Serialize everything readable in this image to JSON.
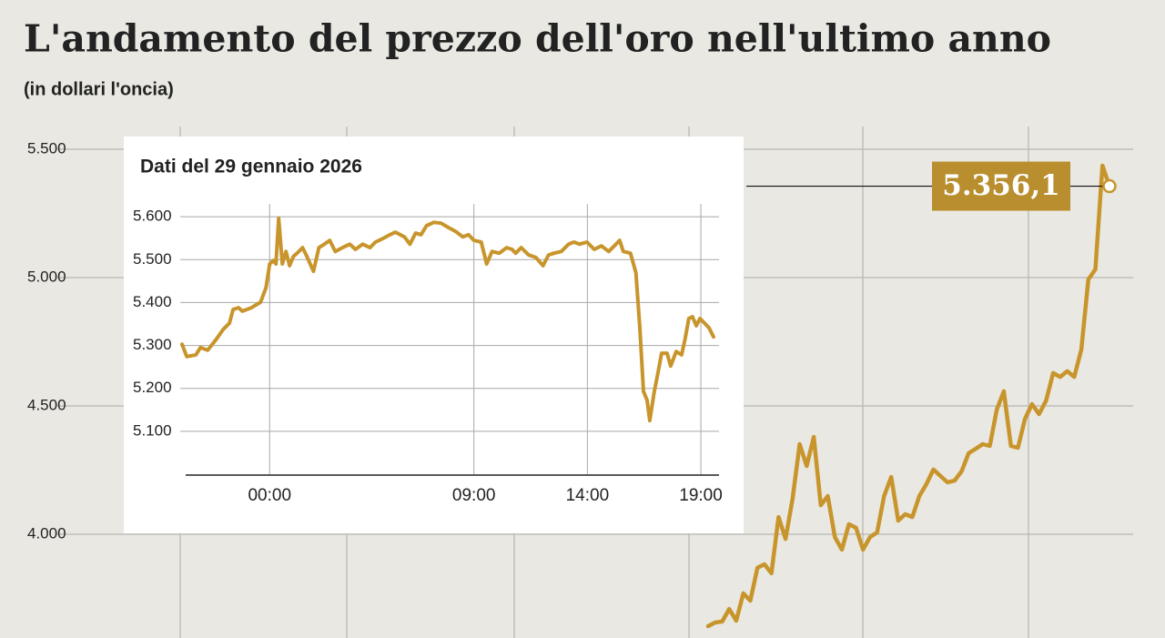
{
  "chart_data": [
    {
      "type": "line",
      "title": "L'andamento del prezzo dell'oro nell'ultimo anno",
      "subtitle": "(in dollari l'oncia)",
      "ylim": [
        3600,
        5590
      ],
      "yticks": [
        {
          "value": 4000,
          "label": "4.000"
        },
        {
          "value": 4500,
          "label": "4.500"
        },
        {
          "value": 5000,
          "label": "5.000"
        },
        {
          "value": 5500,
          "label": "5.500"
        }
      ],
      "grid": true,
      "series": [
        {
          "color": "#c8952c",
          "values": [
            3642,
            3656,
            3660,
            3709,
            3663,
            3770,
            3741,
            3869,
            3883,
            3848,
            4067,
            3982,
            4138,
            4351,
            4266,
            4379,
            4113,
            4149,
            3989,
            3940,
            4039,
            4025,
            3940,
            3989,
            4007,
            4149,
            4223,
            4053,
            4078,
            4067,
            4149,
            4195,
            4252,
            4227,
            4202,
            4209,
            4245,
            4316,
            4333,
            4351,
            4344,
            4486,
            4557,
            4344,
            4337,
            4450,
            4507,
            4468,
            4521,
            4628,
            4613,
            4635,
            4613,
            4720,
            4993,
            5032,
            5436,
            5356.1
          ]
        }
      ],
      "annotation": {
        "text": "5.356,1"
      }
    },
    {
      "type": "line",
      "title": "Dati del 29 gennaio 2026",
      "xlim": [
        -3.7,
        19.8
      ],
      "ylim": [
        5000,
        5630
      ],
      "xticks": [
        {
          "value": 0,
          "label": "00:00"
        },
        {
          "value": 9,
          "label": "09:00"
        },
        {
          "value": 14,
          "label": "14:00"
        },
        {
          "value": 19,
          "label": "19:00"
        }
      ],
      "yticks": [
        {
          "value": 5100,
          "label": "5.100"
        },
        {
          "value": 5200,
          "label": "5.200"
        },
        {
          "value": 5300,
          "label": "5.300"
        },
        {
          "value": 5400,
          "label": "5.400"
        },
        {
          "value": 5500,
          "label": "5.500"
        },
        {
          "value": 5600,
          "label": "5.600"
        }
      ],
      "grid": true,
      "x": [
        -3.86,
        -3.65,
        -3.25,
        -3.05,
        -2.73,
        -2.33,
        -2.05,
        -1.77,
        -1.61,
        -1.37,
        -1.2,
        -0.8,
        -0.4,
        -0.16,
        0,
        0.16,
        0.28,
        0.4,
        0.56,
        0.72,
        0.88,
        1.04,
        1.29,
        1.45,
        1.61,
        1.93,
        2.17,
        2.41,
        2.65,
        2.89,
        3.21,
        3.53,
        3.78,
        4.1,
        4.42,
        4.66,
        4.98,
        5.3,
        5.54,
        5.94,
        6.18,
        6.43,
        6.67,
        6.91,
        7.23,
        7.55,
        7.87,
        8.19,
        8.51,
        8.76,
        9.0,
        9.32,
        9.56,
        9.8,
        10.12,
        10.44,
        10.68,
        10.84,
        11.08,
        11.41,
        11.73,
        12.05,
        12.29,
        12.53,
        12.85,
        13.17,
        13.41,
        13.65,
        13.98,
        14.3,
        14.62,
        14.94,
        15.26,
        15.42,
        15.58,
        15.9,
        16.14,
        16.31,
        16.47,
        16.63,
        16.75,
        16.95,
        17.11,
        17.27,
        17.51,
        17.67,
        17.91,
        18.15,
        18.31,
        18.47,
        18.63,
        18.8,
        18.96,
        19.2,
        19.36,
        19.56
      ],
      "series": [
        {
          "color": "#c8952c",
          "values": [
            5303,
            5274,
            5278,
            5295,
            5289,
            5316,
            5337,
            5352,
            5384,
            5388,
            5380,
            5388,
            5401,
            5435,
            5490,
            5498,
            5490,
            5596,
            5490,
            5519,
            5486,
            5507,
            5519,
            5528,
            5511,
            5473,
            5528,
            5536,
            5545,
            5519,
            5528,
            5536,
            5524,
            5536,
            5528,
            5541,
            5549,
            5558,
            5564,
            5553,
            5536,
            5562,
            5558,
            5579,
            5587,
            5585,
            5575,
            5566,
            5553,
            5558,
            5545,
            5541,
            5490,
            5519,
            5515,
            5528,
            5524,
            5515,
            5528,
            5511,
            5505,
            5486,
            5511,
            5515,
            5519,
            5536,
            5541,
            5536,
            5541,
            5524,
            5532,
            5519,
            5536,
            5545,
            5519,
            5515,
            5469,
            5341,
            5193,
            5172,
            5125,
            5193,
            5236,
            5282,
            5282,
            5252,
            5286,
            5278,
            5316,
            5363,
            5367,
            5346,
            5363,
            5350,
            5341,
            5320
          ]
        }
      ]
    }
  ]
}
